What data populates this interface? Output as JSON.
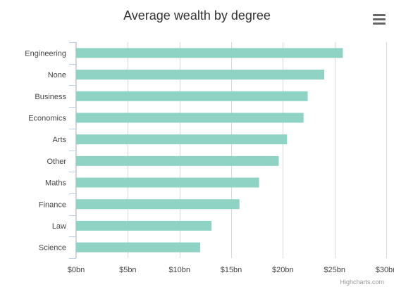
{
  "chart_data": {
    "type": "bar",
    "orientation": "horizontal",
    "title": "Average wealth by degree",
    "categories": [
      "Engineering",
      "None",
      "Business",
      "Economics",
      "Arts",
      "Other",
      "Maths",
      "Finance",
      "Law",
      "Science"
    ],
    "values": [
      25.8,
      24.0,
      22.4,
      22.0,
      20.4,
      19.6,
      17.7,
      15.8,
      13.1,
      12.0
    ],
    "unit": "bn",
    "xlim": [
      0,
      30
    ],
    "x_ticks": [
      0,
      5,
      10,
      15,
      20,
      25,
      30
    ],
    "x_tick_labels": [
      "$0bn",
      "$5bn",
      "$10bn",
      "$15bn",
      "$20bn",
      "$25bn",
      "$30bn"
    ],
    "grid": true,
    "bar_color": "#8fd3c5",
    "gridline_color": "#d8d8d8",
    "axis_color": "#c0d0e0"
  },
  "credits": "Highcharts.com",
  "menu": {
    "icon": "hamburger-menu-icon"
  }
}
